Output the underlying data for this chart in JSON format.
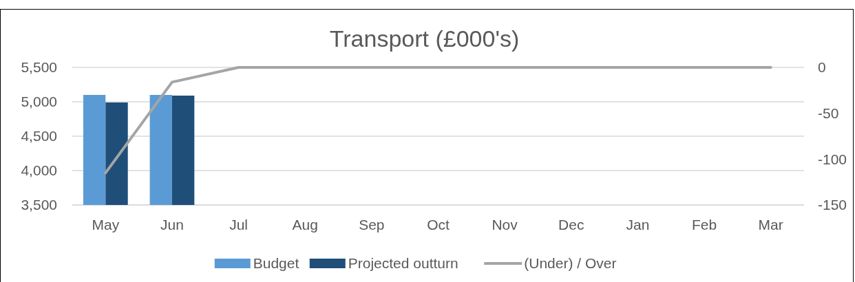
{
  "chart_data": {
    "type": "bar",
    "title": "Transport (£000's)",
    "categories": [
      "May",
      "Jun",
      "Jul",
      "Aug",
      "Sep",
      "Oct",
      "Nov",
      "Dec",
      "Jan",
      "Feb",
      "Mar"
    ],
    "series": [
      {
        "name": "Budget",
        "color": "#5b9bd5",
        "values": [
          5100,
          5100,
          null,
          null,
          null,
          null,
          null,
          null,
          null,
          null,
          null
        ]
      },
      {
        "name": "Projected outturn",
        "color": "#1f4e79",
        "values": [
          4990,
          5090,
          null,
          null,
          null,
          null,
          null,
          null,
          null,
          null,
          null
        ]
      },
      {
        "name": "(Under) / Over",
        "type": "line",
        "axis": "y2",
        "color": "#a5a5a5",
        "values": [
          -115,
          -16,
          0,
          0,
          0,
          0,
          0,
          0,
          0,
          0,
          0
        ]
      }
    ],
    "ylim": [
      3500,
      5500
    ],
    "yticks": [
      {
        "value": 3500,
        "label": "3,500"
      },
      {
        "value": 4000,
        "label": "4,000"
      },
      {
        "value": 4500,
        "label": "4,500"
      },
      {
        "value": 5000,
        "label": "5,000"
      },
      {
        "value": 5500,
        "label": "5,500"
      }
    ],
    "y2lim": [
      -150,
      0
    ],
    "y2ticks": [
      -150,
      -100,
      -50,
      0
    ],
    "grid": "y",
    "legend": "bottom"
  }
}
